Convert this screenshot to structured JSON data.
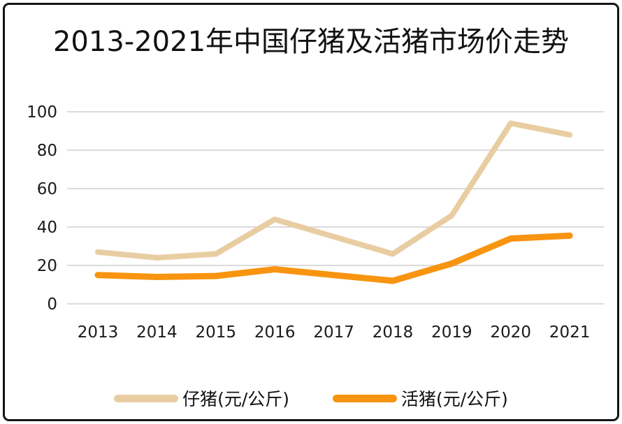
{
  "title": "2013-2021年中国仔猪及活猪市场价走势",
  "colors": {
    "piglet_line": "#E9CDA2",
    "live_pig_line": "#F8940F",
    "gridline": "#D6D6D6",
    "frame_border": "#141414",
    "text": "#111111"
  },
  "chart_data": {
    "type": "line",
    "title": "2013-2021年中国仔猪及活猪市场价走势",
    "categories": [
      "2013",
      "2014",
      "2015",
      "2016",
      "2017",
      "2018",
      "2019",
      "2020",
      "2021"
    ],
    "series": [
      {
        "name": "仔猪(元/公斤)",
        "color": "#E9CDA2",
        "values": [
          27,
          24,
          26,
          44,
          35,
          26,
          46,
          94,
          88
        ]
      },
      {
        "name": "活猪(元/公斤)",
        "color": "#F8940F",
        "values": [
          15,
          14,
          14.5,
          18,
          15,
          12,
          21,
          34,
          35.5
        ]
      }
    ],
    "xlabel": "",
    "ylabel": "",
    "ylim": [
      0,
      100
    ],
    "yticks": [
      0,
      20,
      40,
      60,
      80,
      100
    ],
    "grid": true,
    "legend_position": "bottom"
  }
}
